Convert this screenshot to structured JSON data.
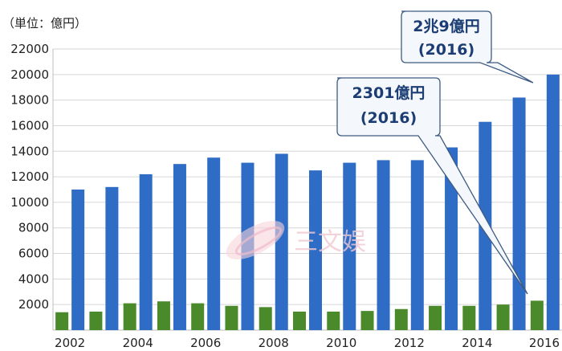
{
  "chart_data": {
    "type": "bar",
    "unit_label": "（単位：億円）",
    "categories": [
      "2002",
      "2003",
      "2004",
      "2005",
      "2006",
      "2007",
      "2008",
      "2009",
      "2010",
      "2011",
      "2012",
      "2013",
      "2014",
      "2015",
      "2016"
    ],
    "x_tick_labels": [
      "2002",
      "2004",
      "2006",
      "2008",
      "2010",
      "2012",
      "2014",
      "2016"
    ],
    "y_tick_labels": [
      "2000",
      "4000",
      "6000",
      "8000",
      "10000",
      "12000",
      "14000",
      "16000",
      "18000",
      "20000",
      "22000"
    ],
    "ylim": [
      0,
      22000
    ],
    "grid": true,
    "series": [
      {
        "color": "#2f6cc5",
        "values": [
          11000,
          11200,
          12200,
          13000,
          13500,
          13100,
          13800,
          12500,
          13100,
          13300,
          13300,
          14300,
          16300,
          18200,
          20000
        ]
      },
      {
        "color": "#4a8a2b",
        "values": [
          1400,
          1450,
          2100,
          2250,
          2100,
          1900,
          1800,
          1450,
          1450,
          1500,
          1650,
          1900,
          1900,
          2000,
          2301
        ]
      }
    ],
    "annotations": [
      {
        "line1": "2兆9億円",
        "line2": "(2016)",
        "series_index": 0,
        "category": "2016"
      },
      {
        "line1": "2301億円",
        "line2": "(2016)",
        "series_index": 1,
        "category": "2016"
      }
    ]
  },
  "watermark": {
    "text": "三文娱",
    "color": "#f0c9d2"
  }
}
